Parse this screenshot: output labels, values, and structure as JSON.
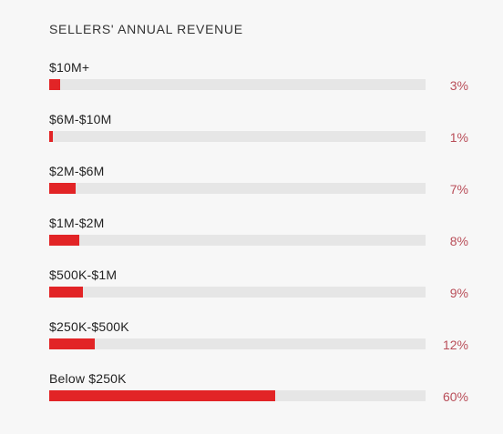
{
  "chart_data": {
    "type": "bar",
    "orientation": "horizontal",
    "title": "SELLERS' ANNUAL REVENUE",
    "categories": [
      "$10M+",
      "$6M-$10M",
      "$2M-$6M",
      "$1M-$2M",
      "$500K-$1M",
      "$250K-$500K",
      "Below $250K"
    ],
    "values": [
      3,
      1,
      7,
      8,
      9,
      12,
      60
    ],
    "value_labels": [
      "3%",
      "1%",
      "7%",
      "8%",
      "9%",
      "12%",
      "60%"
    ],
    "unit": "%",
    "xlim": [
      0,
      100
    ],
    "grid": false,
    "legend": "none"
  },
  "colors": {
    "bar": "#e22426",
    "track": "#e6e6e6",
    "value_text": "#b94e59"
  }
}
